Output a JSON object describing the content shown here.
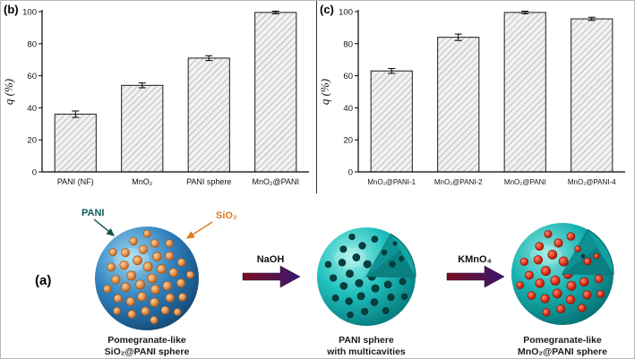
{
  "panels": {
    "a": "(a)",
    "b": "(b)",
    "c": "(c)"
  },
  "chart_data": [
    {
      "type": "bar",
      "panel": "b",
      "categories": [
        "PANI (NF)",
        "MnO₂",
        "PANI sphere",
        "MnO₂@PANI"
      ],
      "values": [
        36,
        54,
        71,
        99.5
      ],
      "errors": [
        2,
        1.5,
        1.5,
        0.8
      ],
      "title": "",
      "xlabel": "",
      "ylabel": "q (%)",
      "ylim": [
        0,
        100
      ],
      "yticks": [
        0,
        20,
        40,
        60,
        80,
        100
      ],
      "grid": false,
      "bar_fill": "hatched-gray",
      "bar_edge": "#1c1c1c"
    },
    {
      "type": "bar",
      "panel": "c",
      "categories": [
        "MnO₂@PANI-1",
        "MnO₂@PANI-2",
        "MnO₂@PANI",
        "MnO₂@PANI-4"
      ],
      "values": [
        63,
        84,
        99.5,
        95.5
      ],
      "errors": [
        1.5,
        2,
        0.8,
        1
      ],
      "title": "",
      "xlabel": "",
      "ylabel": "q (%)",
      "ylim": [
        0,
        100
      ],
      "yticks": [
        0,
        20,
        40,
        60,
        80,
        100
      ],
      "grid": false,
      "bar_fill": "hatched-gray",
      "bar_edge": "#1c1c1c"
    }
  ],
  "schematic": {
    "pani_label": "PANI",
    "pani_color": "#0d5c5c",
    "sio2_label": "SiO₂",
    "sio2_color": "#e07a1e",
    "arrow1_label": "NaOH",
    "arrow2_label": "KMnO₄",
    "sphere1_caption": [
      "Pomegranate-like",
      "SiO₂@PANI sphere"
    ],
    "sphere2_caption": [
      "PANI sphere",
      "with multicavities"
    ],
    "sphere3_caption": [
      "Pomegranate-like",
      "MnO₂@PANI sphere"
    ],
    "colors": {
      "sphere1_body": "#2f7fbd",
      "sphere1_dots": "#e09050",
      "sphere23_body": "#1fc0bd",
      "sphere3_dots": "#e03c24",
      "arrow_gradient_start": "#7a0f1f",
      "arrow_gradient_end": "#3a1670"
    }
  }
}
